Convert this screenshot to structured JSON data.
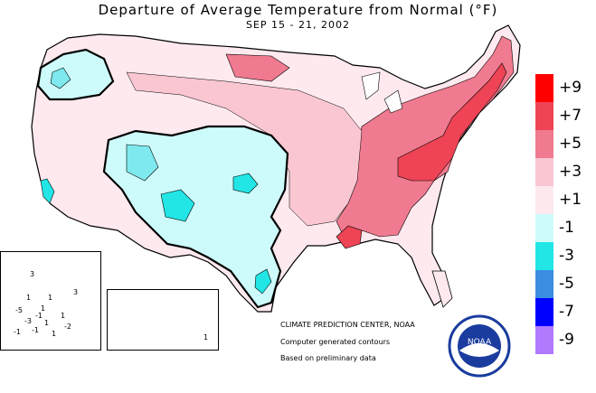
{
  "title": "Departure of Average Temperature from Normal (°F)",
  "subtitle": "SEP 15 - 21, 2002",
  "legend": {
    "items": [
      {
        "label": "+9",
        "color": "#ff0000"
      },
      {
        "label": "+7",
        "color": "#ee4455"
      },
      {
        "label": "+5",
        "color": "#f07a90"
      },
      {
        "label": "+3",
        "color": "#f9c6d2"
      },
      {
        "label": "+1",
        "color": "#fde9ee"
      },
      {
        "label": "-1",
        "color": "#cdfbfb"
      },
      {
        "label": "-3",
        "color": "#22e6e6"
      },
      {
        "label": "-5",
        "color": "#3a8de0"
      },
      {
        "label": "-7",
        "color": "#0000ff"
      },
      {
        "label": "-9",
        "color": "#b07aff"
      }
    ]
  },
  "credits": {
    "center": "CLIMATE PREDICTION CENTER, NOAA",
    "line1": "Computer generated contours",
    "line2": "Based on preliminary data"
  },
  "logo": {
    "text": "NOAA"
  },
  "alaska_labels": [
    "3",
    "1",
    "1",
    "1",
    "3",
    "-5",
    "-1",
    "1",
    "1",
    "-3",
    "-1",
    "1",
    "-2",
    "-1"
  ],
  "hawaii_labels": [
    "1"
  ]
}
